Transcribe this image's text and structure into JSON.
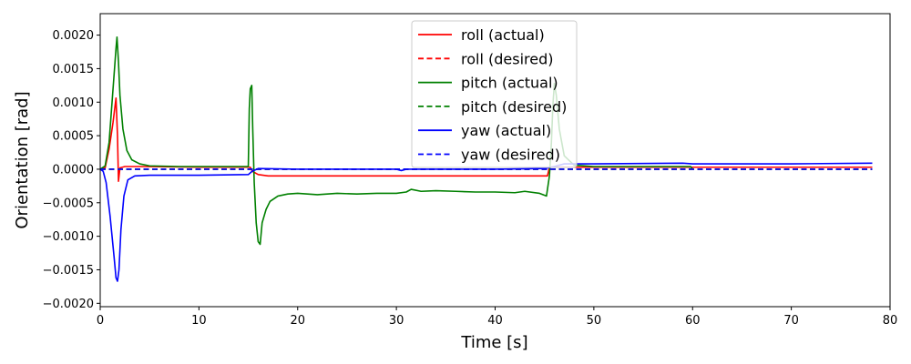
{
  "chart_data": {
    "type": "line",
    "xlabel": "Time [s]",
    "ylabel": "Orientation [rad]",
    "xlim": [
      0,
      80
    ],
    "ylim": [
      -0.00205,
      0.00232
    ],
    "xticks": [
      0,
      10,
      20,
      30,
      40,
      50,
      60,
      70,
      80
    ],
    "xtick_labels": [
      "0",
      "10",
      "20",
      "30",
      "40",
      "50",
      "60",
      "70",
      "80"
    ],
    "yticks": [
      -0.002,
      -0.0015,
      -0.001,
      -0.0005,
      0.0,
      0.0005,
      0.001,
      0.0015,
      0.002
    ],
    "ytick_labels": [
      "−0.0020",
      "−0.0015",
      "−0.0010",
      "−0.0005",
      "0.0000",
      "0.0005",
      "0.0010",
      "0.0015",
      "0.0020"
    ],
    "grid": false,
    "legend_position": "top-center",
    "series": [
      {
        "name": "roll (actual)",
        "color": "#ff0000",
        "style": "solid",
        "points": [
          [
            0,
            0
          ],
          [
            0.5,
            2e-05
          ],
          [
            0.9,
            0.0003
          ],
          [
            1.3,
            0.0007
          ],
          [
            1.6,
            0.00106
          ],
          [
            1.75,
            0.0005
          ],
          [
            1.85,
            -0.00018
          ],
          [
            2.0,
            2e-05
          ],
          [
            2.5,
            4e-05
          ],
          [
            4,
            4e-05
          ],
          [
            10,
            3e-05
          ],
          [
            15.2,
            3e-05
          ],
          [
            15.4,
            -3e-05
          ],
          [
            16,
            -8e-05
          ],
          [
            17,
            -0.0001
          ],
          [
            20,
            -0.0001
          ],
          [
            30,
            -0.0001
          ],
          [
            40,
            -0.0001
          ],
          [
            45.3,
            -0.0001
          ],
          [
            45.5,
            3e-05
          ],
          [
            46,
            3e-05
          ],
          [
            60,
            3e-05
          ],
          [
            70,
            3e-05
          ],
          [
            78.2,
            3e-05
          ]
        ]
      },
      {
        "name": "roll (desired)",
        "color": "#ff0000",
        "style": "dashed",
        "points": [
          [
            0,
            0
          ],
          [
            78.2,
            0
          ]
        ]
      },
      {
        "name": "pitch (actual)",
        "color": "#008000",
        "style": "solid",
        "points": [
          [
            0,
            0
          ],
          [
            0.5,
            5e-05
          ],
          [
            0.9,
            0.0004
          ],
          [
            1.3,
            0.0012
          ],
          [
            1.6,
            0.0018
          ],
          [
            1.7,
            0.00197
          ],
          [
            1.85,
            0.0016
          ],
          [
            2.0,
            0.0011
          ],
          [
            2.3,
            0.0006
          ],
          [
            2.7,
            0.00028
          ],
          [
            3.2,
            0.00014
          ],
          [
            4,
            8e-05
          ],
          [
            5,
            5e-05
          ],
          [
            8,
            4e-05
          ],
          [
            15.0,
            4e-05
          ],
          [
            15.1,
            0.0009
          ],
          [
            15.2,
            0.0012
          ],
          [
            15.35,
            0.00125
          ],
          [
            15.45,
            0.0006
          ],
          [
            15.6,
            -0.0002
          ],
          [
            15.8,
            -0.0008
          ],
          [
            16.0,
            -0.00108
          ],
          [
            16.2,
            -0.00112
          ],
          [
            16.4,
            -0.0008
          ],
          [
            16.8,
            -0.0006
          ],
          [
            17.2,
            -0.00048
          ],
          [
            18,
            -0.0004
          ],
          [
            19,
            -0.00037
          ],
          [
            20,
            -0.00036
          ],
          [
            22,
            -0.00038
          ],
          [
            24,
            -0.00036
          ],
          [
            26,
            -0.00037
          ],
          [
            28,
            -0.00036
          ],
          [
            30,
            -0.00036
          ],
          [
            31,
            -0.00034
          ],
          [
            31.5,
            -0.0003
          ],
          [
            32.5,
            -0.00033
          ],
          [
            34,
            -0.00032
          ],
          [
            36,
            -0.00033
          ],
          [
            38,
            -0.00034
          ],
          [
            40,
            -0.00034
          ],
          [
            42,
            -0.00035
          ],
          [
            43,
            -0.00033
          ],
          [
            44.5,
            -0.00036
          ],
          [
            45.2,
            -0.0004
          ],
          [
            45.5,
            -0.0001
          ],
          [
            45.7,
            0.0004
          ],
          [
            45.85,
            0.00095
          ],
          [
            46.0,
            0.00128
          ],
          [
            46.2,
            0.0011
          ],
          [
            46.5,
            0.0006
          ],
          [
            47,
            0.0002
          ],
          [
            48,
            6e-05
          ],
          [
            50,
            4e-05
          ],
          [
            55,
            4e-05
          ],
          [
            59.8,
            4e-05
          ],
          [
            60,
            0
          ]
        ]
      },
      {
        "name": "pitch (desired)",
        "color": "#008000",
        "style": "dashed",
        "points": [
          [
            0,
            0
          ],
          [
            78.2,
            0
          ]
        ]
      },
      {
        "name": "yaw (actual)",
        "color": "#0000ff",
        "style": "solid",
        "points": [
          [
            0,
            0
          ],
          [
            0.3,
            -3e-05
          ],
          [
            0.6,
            -0.0002
          ],
          [
            1.0,
            -0.0007
          ],
          [
            1.4,
            -0.0013
          ],
          [
            1.6,
            -0.00162
          ],
          [
            1.75,
            -0.00167
          ],
          [
            1.9,
            -0.0015
          ],
          [
            2.1,
            -0.0009
          ],
          [
            2.4,
            -0.0004
          ],
          [
            2.8,
            -0.00016
          ],
          [
            3.5,
            -0.0001
          ],
          [
            5,
            -9e-05
          ],
          [
            10,
            -9e-05
          ],
          [
            15.0,
            -8e-05
          ],
          [
            15.4,
            -3e-05
          ],
          [
            16,
            1e-05
          ],
          [
            20,
            0
          ],
          [
            25,
            0
          ],
          [
            30,
            0
          ],
          [
            30.5,
            -2e-05
          ],
          [
            31,
            0
          ],
          [
            35,
            0
          ],
          [
            40,
            0
          ],
          [
            45,
            1e-05
          ],
          [
            46,
            4e-05
          ],
          [
            47,
            8e-05
          ],
          [
            50,
            8e-05
          ],
          [
            59,
            9e-05
          ],
          [
            60,
            8e-05
          ],
          [
            65,
            8e-05
          ],
          [
            70,
            8e-05
          ],
          [
            78.2,
            9e-05
          ]
        ]
      },
      {
        "name": "yaw (desired)",
        "color": "#0000ff",
        "style": "dashed",
        "points": [
          [
            0,
            0
          ],
          [
            78.2,
            0
          ]
        ]
      }
    ]
  }
}
